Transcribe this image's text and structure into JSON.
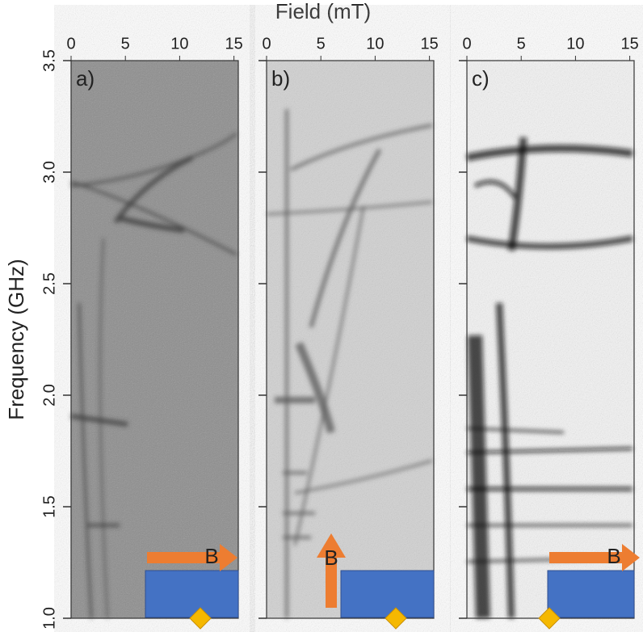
{
  "chart_data": {
    "type": "image",
    "xlabel": "Field (mT)",
    "ylabel": "Frequency (GHz)",
    "xlim": [
      0,
      15.4
    ],
    "xticks": [
      0,
      5,
      10,
      15
    ],
    "ylim": [
      1.0,
      3.5
    ],
    "yticks": [
      {
        "value": 1.0,
        "label": "1.0"
      },
      {
        "value": 1.5,
        "label": "1.5"
      },
      {
        "value": 2.0,
        "label": "2.0"
      },
      {
        "value": 2.5,
        "label": "2.5"
      },
      {
        "value": 3.0,
        "label": "3.0"
      },
      {
        "value": 3.5,
        "label": "3.5"
      }
    ],
    "panels": [
      "a)",
      "b)",
      "c)"
    ],
    "annotation": "B"
  }
}
